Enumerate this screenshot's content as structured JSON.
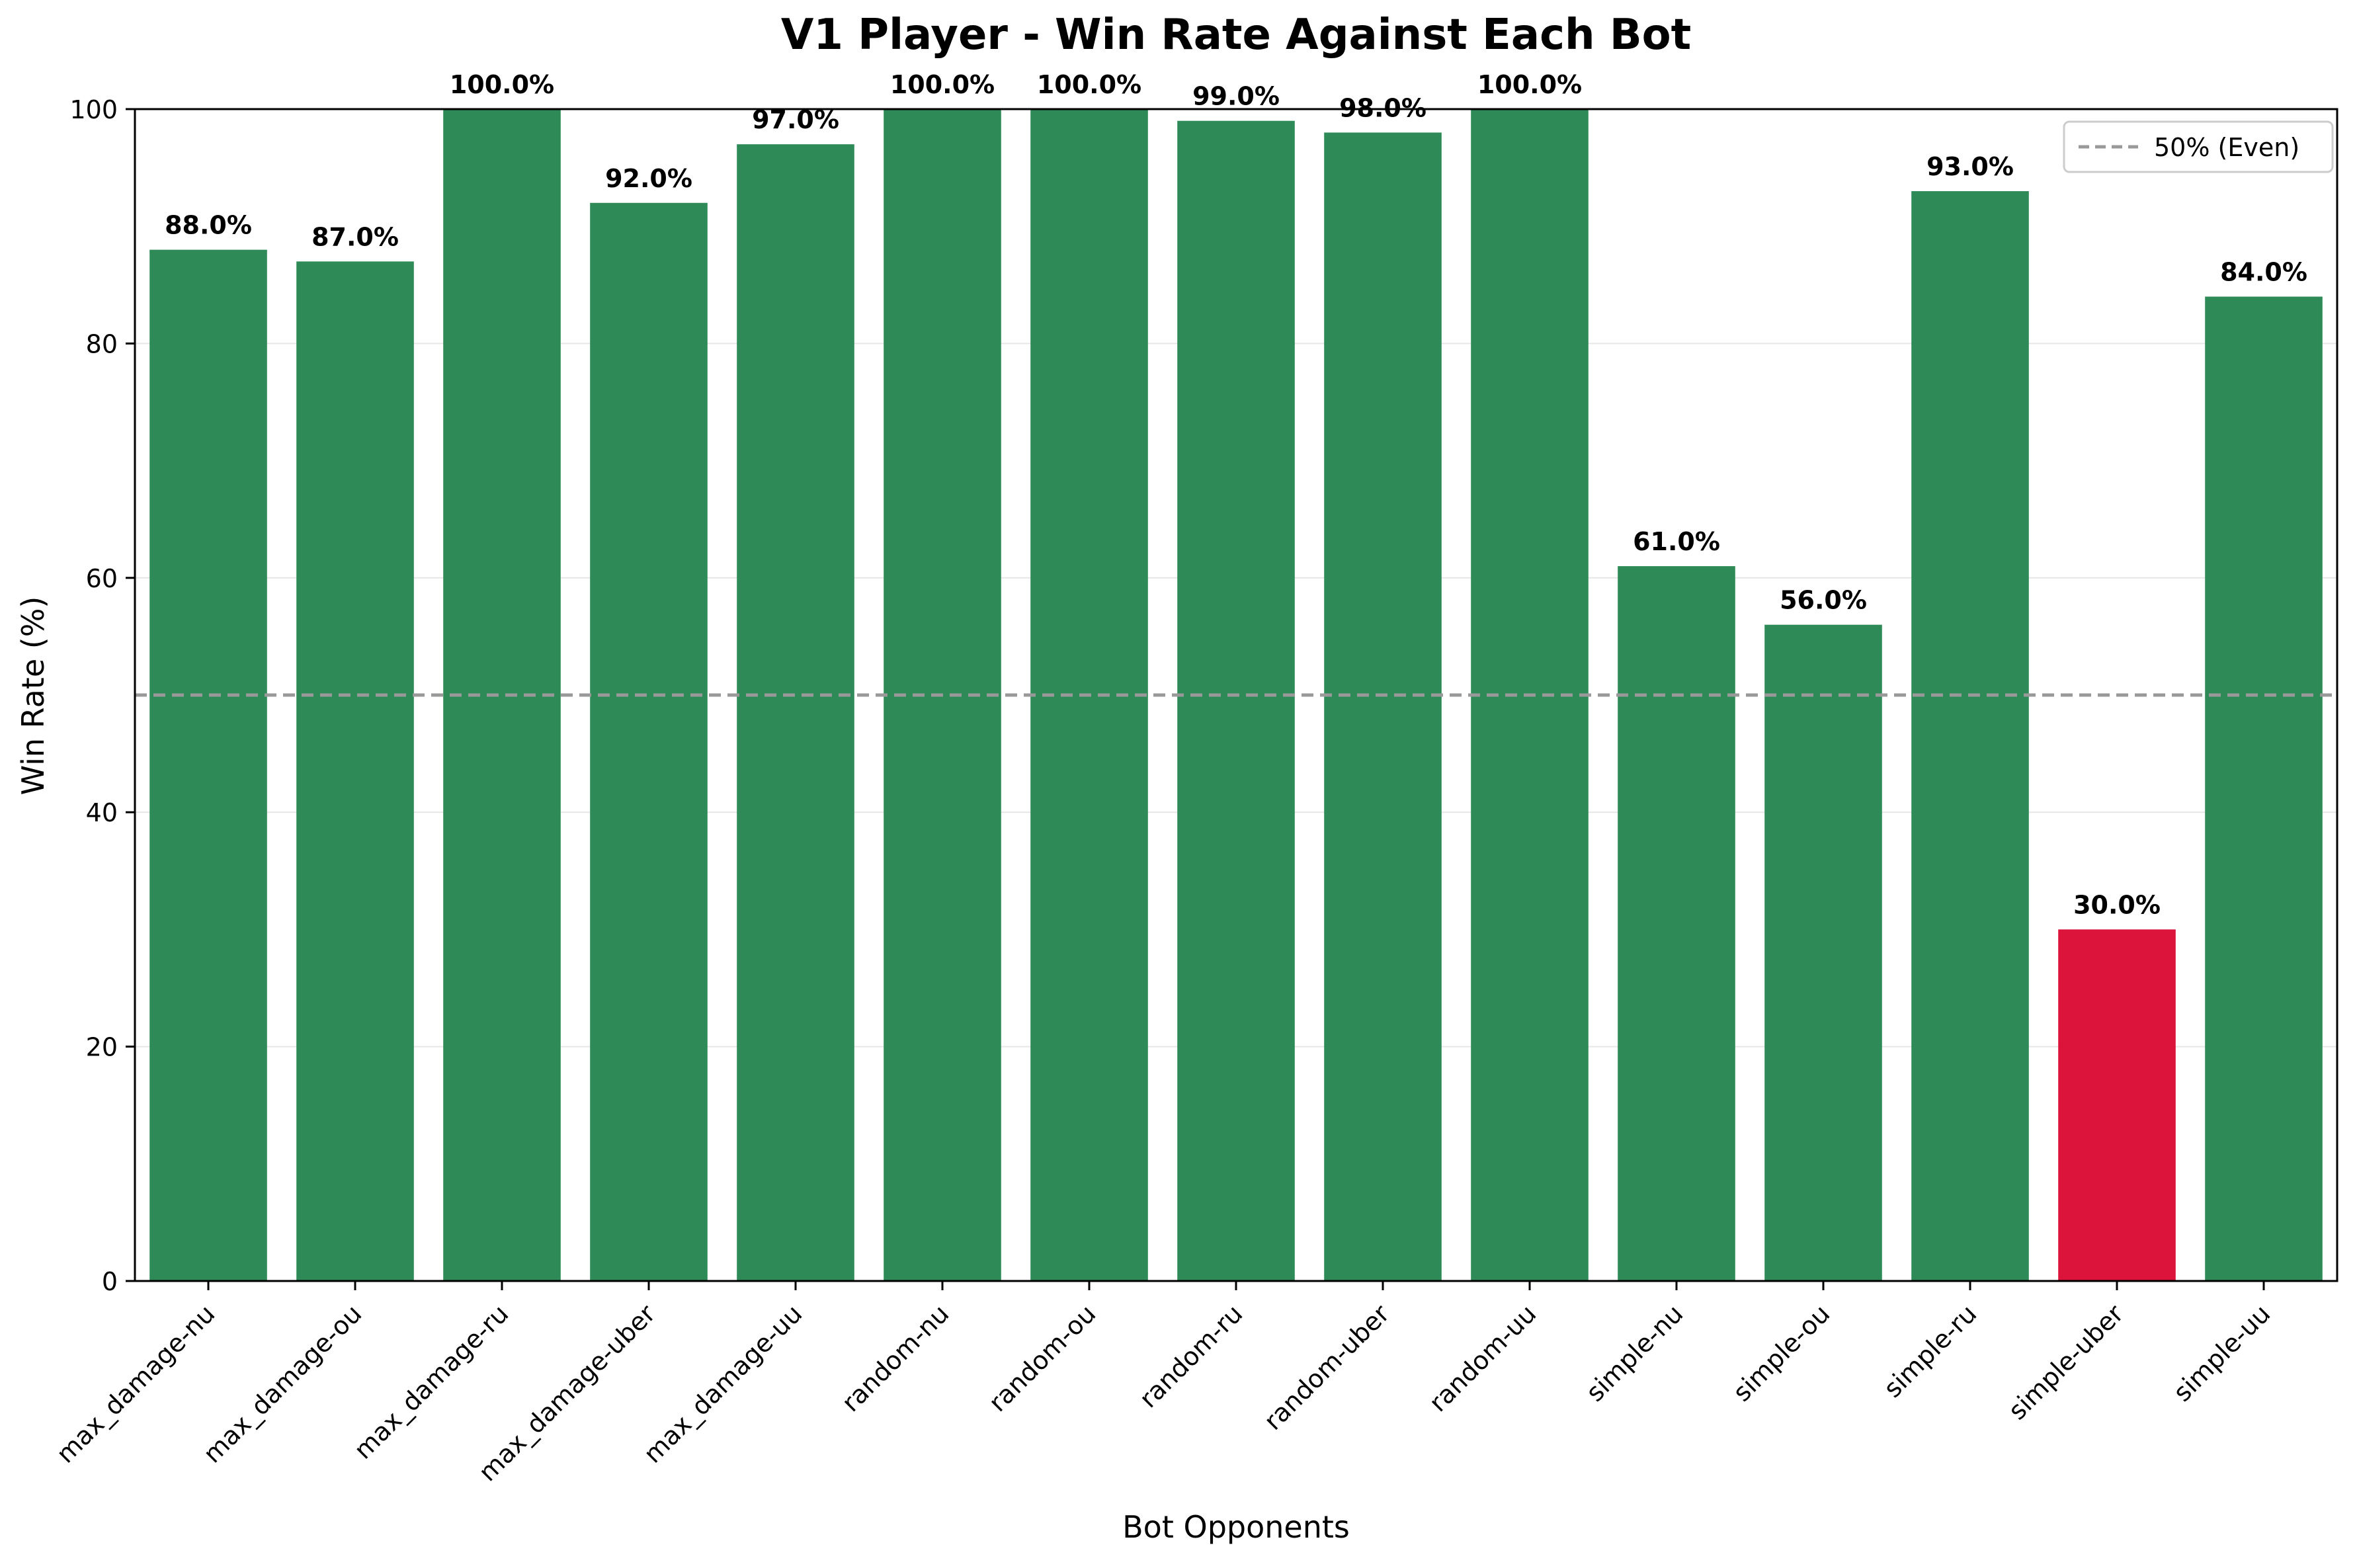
{
  "chart_data": {
    "type": "bar",
    "title": "V1 Player - Win Rate Against Each Bot",
    "xlabel": "Bot Opponents",
    "ylabel": "Win Rate (%)",
    "ylim": [
      0,
      100
    ],
    "yticks": [
      0,
      20,
      40,
      60,
      80,
      100
    ],
    "grid": "horizontal",
    "categories": [
      "max_damage-nu",
      "max_damage-ou",
      "max_damage-ru",
      "max_damage-uber",
      "max_damage-uu",
      "random-nu",
      "random-ou",
      "random-ru",
      "random-uber",
      "random-uu",
      "simple-nu",
      "simple-ou",
      "simple-ru",
      "simple-uber",
      "simple-uu"
    ],
    "values": [
      88,
      87,
      100,
      92,
      97,
      100,
      100,
      99,
      98,
      100,
      61,
      56,
      93,
      30,
      84
    ],
    "data_labels": [
      "88.0%",
      "87.0%",
      "100.0%",
      "92.0%",
      "97.0%",
      "100.0%",
      "100.0%",
      "99.0%",
      "98.0%",
      "100.0%",
      "61.0%",
      "56.0%",
      "93.0%",
      "30.0%",
      "84.0%"
    ],
    "colors": {
      "above_threshold": "#2e8b57",
      "below_threshold": "#dc143c",
      "reference_line": "#999999",
      "grid": "#e6e6e6"
    },
    "reference_line": {
      "value": 50,
      "label": "50% (Even)",
      "style": "dashed"
    },
    "legend": {
      "placement": "top-right",
      "entries": [
        "50% (Even)"
      ]
    }
  }
}
